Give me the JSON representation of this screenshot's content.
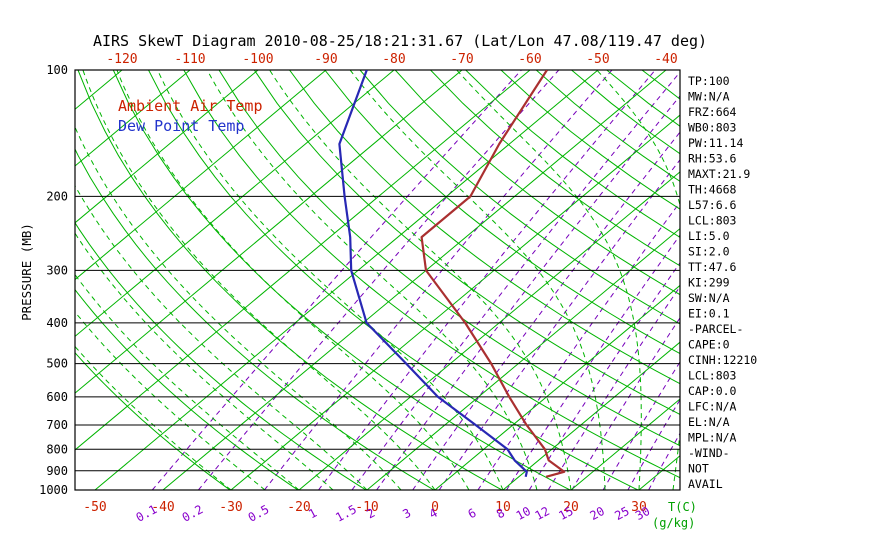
{
  "title": "AIRS SkewT Diagram 2010-08-25/18:21:31.67 (Lat/Lon 47.08/119.47 deg)",
  "legend": {
    "temp_label": "Ambient Air Temp",
    "dewpoint_label": "Dew Point Temp"
  },
  "axes": {
    "pressure_label": "PRESSURE (MB)",
    "pressure_ticks": [
      100,
      200,
      300,
      400,
      500,
      600,
      700,
      800,
      900,
      1000
    ],
    "top_temp_ticks": [
      -120,
      -110,
      -100,
      -90,
      -80,
      -70,
      -60,
      -50,
      -40
    ],
    "bottom_temp_ticks": [
      -50,
      -40,
      -30,
      -20,
      -10,
      0,
      10,
      20,
      30
    ],
    "mixing_ratio_ticks": [
      0.1,
      0.2,
      0.5,
      1,
      1.5,
      2,
      3,
      4,
      6,
      8,
      10,
      12,
      15,
      20,
      25,
      30
    ],
    "temp_unit_label": "T(C)",
    "mixing_unit_label": "(g/kg)"
  },
  "stats_panel": {
    "items": [
      "TP:100",
      "MW:N/A",
      "FRZ:664",
      "WB0:803",
      "PW:11.14",
      "RH:53.6",
      "MAXT:21.9",
      "TH:4668",
      "L57:6.6",
      "LCL:803",
      "LI:5.0",
      "SI:2.0",
      "TT:47.6",
      "KI:299",
      "SW:N/A",
      "EI:0.1",
      "-PARCEL-",
      "CAPE:0",
      "CINH:12210",
      "LCL:803",
      "CAP:0.0",
      "LFC:N/A",
      "EL:N/A",
      "MPL:N/A",
      "-WIND-",
      "NOT",
      "AVAIL"
    ]
  },
  "colors": {
    "background": "#ffffff",
    "title_text": "#000000",
    "axis_text": "#000000",
    "pressure_line": "#000000",
    "red_label": "#cc2200",
    "green_line": "#00b400",
    "green_label": "#00a000",
    "purple_line": "#7700bb",
    "purple_label": "#8800cc",
    "legend_temp": "#cc2200",
    "legend_dewpoint": "#2233cc"
  },
  "chart_data": {
    "type": "line",
    "title": "AIRS SkewT Diagram 2010-08-25/18:21:31.67 (Lat/Lon 47.08/119.47 deg)",
    "xlabel": "T(C)",
    "ylabel": "PRESSURE (MB)",
    "y_scale": "log",
    "y_range_mb": [
      100,
      1000
    ],
    "skew_t": true,
    "units": {
      "p": "mb",
      "t": "C"
    },
    "series": [
      {
        "name": "Ambient Air Temp",
        "color": "#aa3030",
        "points": [
          [
            930,
            14.0
          ],
          [
            905,
            15.8
          ],
          [
            850,
            11.5
          ],
          [
            800,
            9.0
          ],
          [
            700,
            2.0
          ],
          [
            600,
            -5.5
          ],
          [
            500,
            -14.0
          ],
          [
            400,
            -25.0
          ],
          [
            300,
            -40.0
          ],
          [
            250,
            -46.5
          ],
          [
            200,
            -46.5
          ],
          [
            150,
            -51.5
          ],
          [
            100,
            -57.5
          ]
        ]
      },
      {
        "name": "Dew Point Temp",
        "color": "#2828b4",
        "points": [
          [
            930,
            11.0
          ],
          [
            905,
            10.3
          ],
          [
            850,
            6.5
          ],
          [
            800,
            3.5
          ],
          [
            700,
            -5.5
          ],
          [
            600,
            -16.0
          ],
          [
            500,
            -26.5
          ],
          [
            400,
            -39.5
          ],
          [
            300,
            -51.0
          ],
          [
            250,
            -57.0
          ],
          [
            200,
            -65.0
          ],
          [
            150,
            -75.0
          ],
          [
            100,
            -84.0
          ]
        ]
      }
    ],
    "isotherms_c": {
      "min": -150,
      "max": 40,
      "step": 10
    },
    "dry_adiabats_theta_k": {
      "min": 243,
      "max": 443,
      "step": 10
    },
    "moist_adiabats_start_c": {
      "min": -30,
      "max": 40,
      "step": 5
    },
    "mixing_ratio_lines_gkg": [
      0.1,
      0.2,
      0.5,
      1,
      1.5,
      2,
      3,
      4,
      6,
      8,
      10,
      12,
      15,
      20,
      25,
      30
    ]
  }
}
